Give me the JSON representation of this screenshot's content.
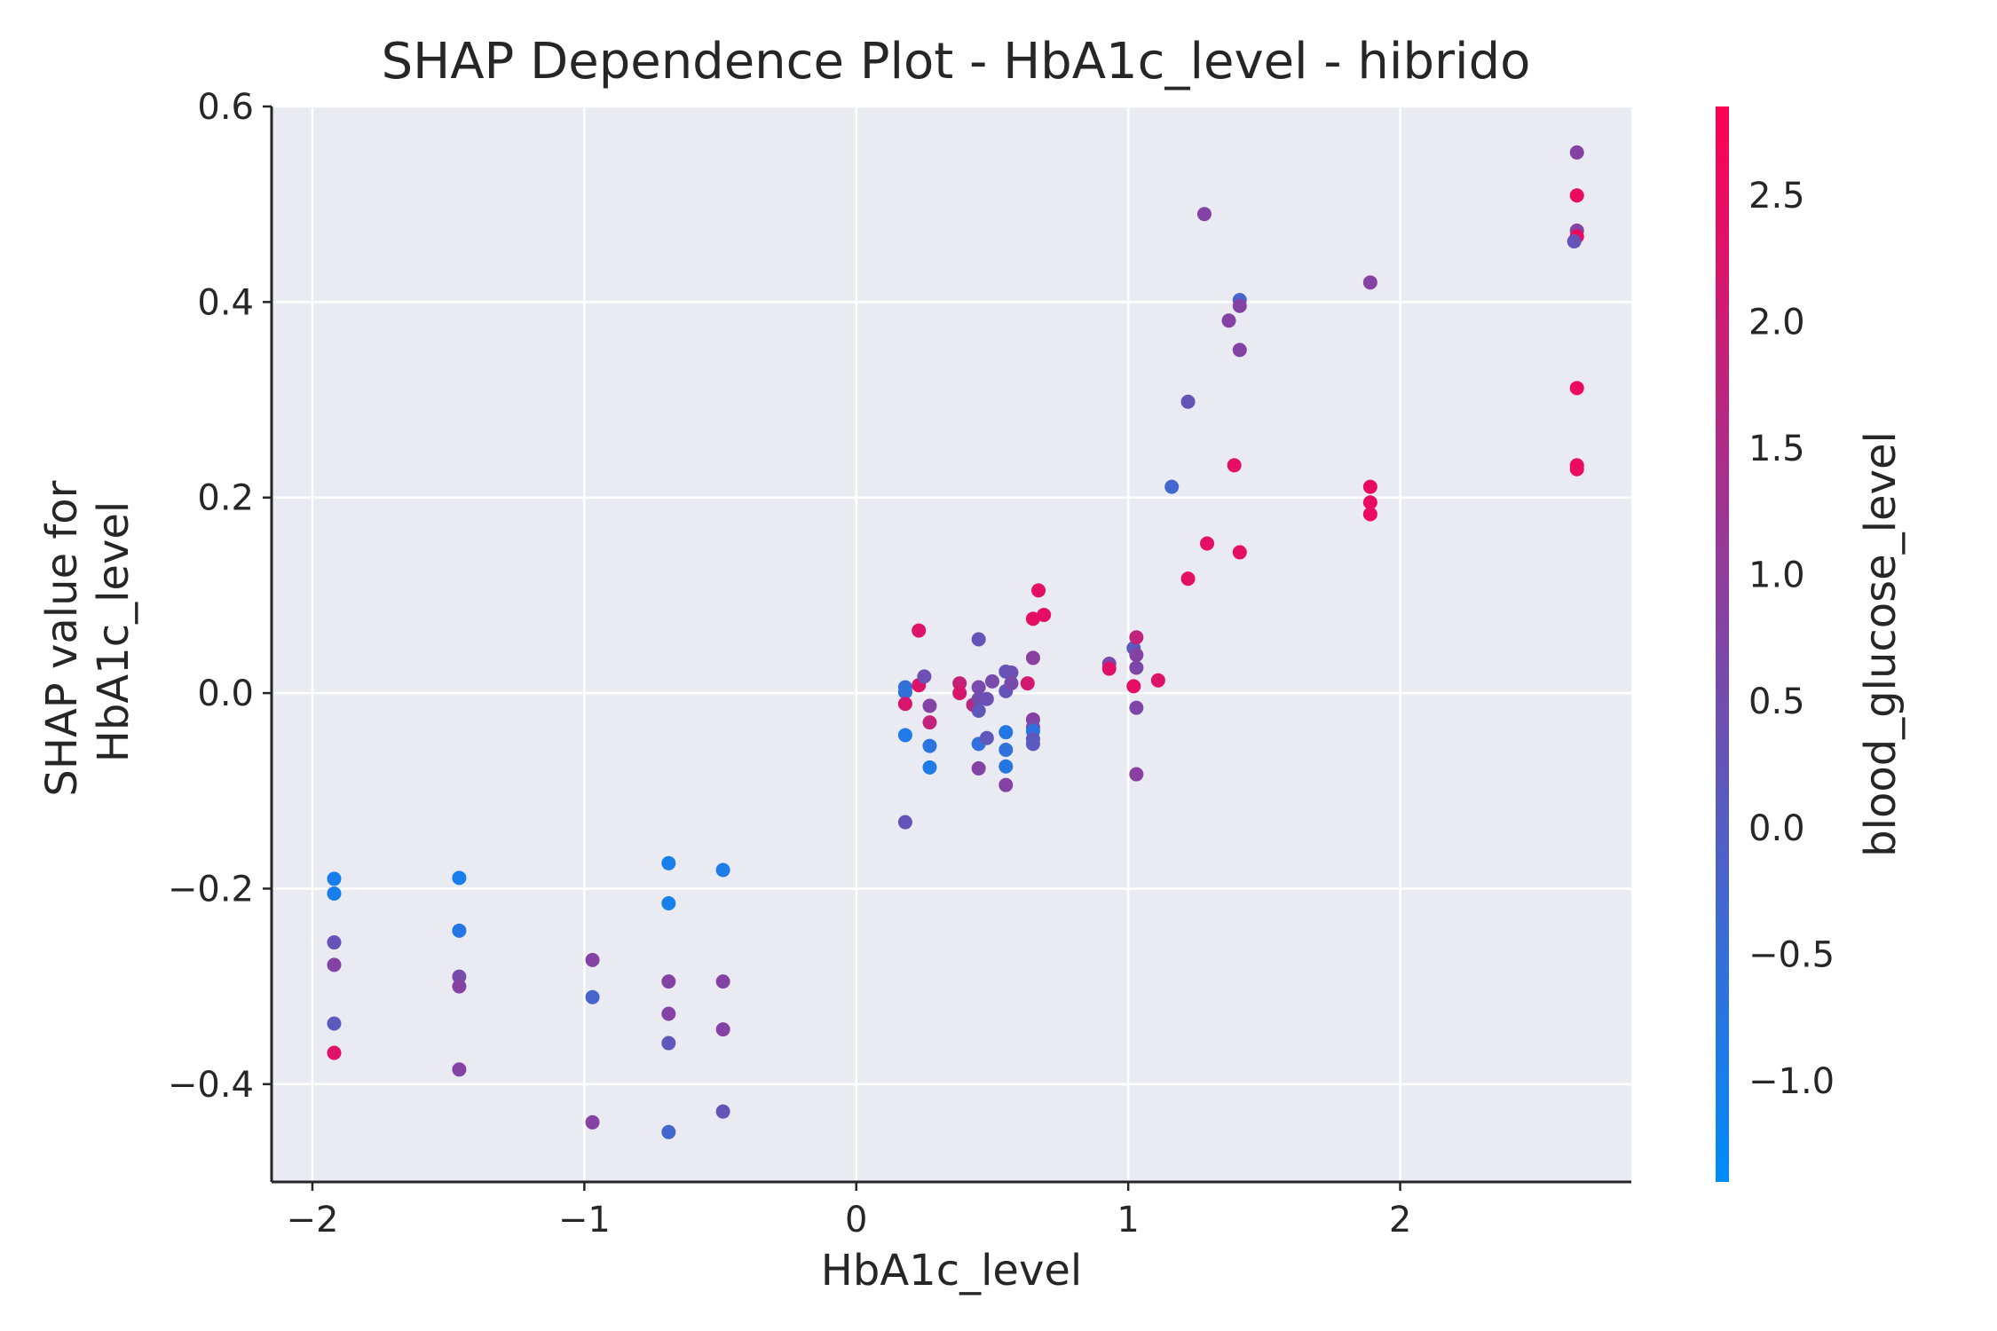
{
  "chart_data": {
    "type": "scatter",
    "title": "SHAP Dependence Plot - HbA1c_level - hibrido",
    "xlabel": "HbA1c_level",
    "ylabel": "SHAP value for\nHbA1c_level",
    "xlim": [
      -2.15,
      2.85
    ],
    "ylim": [
      -0.5,
      0.6
    ],
    "xticks": [
      {
        "value": -2,
        "label": "−2"
      },
      {
        "value": -1,
        "label": "−1"
      },
      {
        "value": 0,
        "label": "0"
      },
      {
        "value": 1,
        "label": "1"
      },
      {
        "value": 2,
        "label": "2"
      }
    ],
    "yticks": [
      {
        "value": -0.4,
        "label": "−0.4"
      },
      {
        "value": -0.2,
        "label": "−0.2"
      },
      {
        "value": 0.0,
        "label": "0.0"
      },
      {
        "value": 0.2,
        "label": "0.2"
      },
      {
        "value": 0.4,
        "label": "0.4"
      },
      {
        "value": 0.6,
        "label": "0.6"
      }
    ],
    "grid": true,
    "background": "#eaeaf2",
    "colorbar": {
      "label": "blood_glucose_level",
      "range": [
        -1.4,
        2.85
      ],
      "ticks": [
        {
          "value": -1.0,
          "label": "−1.0"
        },
        {
          "value": -0.5,
          "label": "−0.5"
        },
        {
          "value": 0.0,
          "label": "0.0"
        },
        {
          "value": 0.5,
          "label": "0.5"
        },
        {
          "value": 1.0,
          "label": "1.0"
        },
        {
          "value": 1.5,
          "label": "1.5"
        },
        {
          "value": 2.0,
          "label": "2.0"
        },
        {
          "value": 2.5,
          "label": "2.5"
        }
      ],
      "colors": [
        "#008bfb",
        "#ff0052"
      ]
    },
    "points": [
      {
        "x": -1.92,
        "y": -0.19,
        "c": -1.0
      },
      {
        "x": -1.92,
        "y": -0.205,
        "c": -1.0
      },
      {
        "x": -1.92,
        "y": -0.255,
        "c": 0.3
      },
      {
        "x": -1.92,
        "y": -0.278,
        "c": 0.8
      },
      {
        "x": -1.92,
        "y": -0.338,
        "c": 0.1
      },
      {
        "x": -1.92,
        "y": -0.368,
        "c": 2.3
      },
      {
        "x": -1.46,
        "y": -0.189,
        "c": -1.0
      },
      {
        "x": -1.46,
        "y": -0.243,
        "c": -0.8
      },
      {
        "x": -1.46,
        "y": -0.29,
        "c": 0.6
      },
      {
        "x": -1.46,
        "y": -0.3,
        "c": 0.8
      },
      {
        "x": -1.46,
        "y": -0.385,
        "c": 0.8
      },
      {
        "x": -0.97,
        "y": -0.273,
        "c": 0.8
      },
      {
        "x": -0.97,
        "y": -0.311,
        "c": -0.2
      },
      {
        "x": -0.97,
        "y": -0.439,
        "c": 0.8
      },
      {
        "x": -0.69,
        "y": -0.174,
        "c": -1.0
      },
      {
        "x": -0.69,
        "y": -0.215,
        "c": -1.0
      },
      {
        "x": -0.69,
        "y": -0.295,
        "c": 0.8
      },
      {
        "x": -0.69,
        "y": -0.328,
        "c": 0.8
      },
      {
        "x": -0.69,
        "y": -0.358,
        "c": 0.2
      },
      {
        "x": -0.69,
        "y": -0.449,
        "c": -0.3
      },
      {
        "x": -0.49,
        "y": -0.181,
        "c": -0.9
      },
      {
        "x": -0.49,
        "y": -0.295,
        "c": 0.8
      },
      {
        "x": -0.49,
        "y": -0.344,
        "c": 0.8
      },
      {
        "x": -0.49,
        "y": -0.428,
        "c": 0.3
      },
      {
        "x": 0.18,
        "y": 0.006,
        "c": -0.5
      },
      {
        "x": 0.18,
        "y": 0.001,
        "c": -0.6
      },
      {
        "x": 0.18,
        "y": -0.011,
        "c": 2.2
      },
      {
        "x": 0.18,
        "y": -0.043,
        "c": -0.9
      },
      {
        "x": 0.18,
        "y": -0.132,
        "c": 0.3
      },
      {
        "x": 0.23,
        "y": 0.064,
        "c": 2.3
      },
      {
        "x": 0.23,
        "y": 0.008,
        "c": 2.3
      },
      {
        "x": 0.25,
        "y": 0.017,
        "c": 0.4
      },
      {
        "x": 0.27,
        "y": -0.013,
        "c": 0.8
      },
      {
        "x": 0.27,
        "y": -0.03,
        "c": 1.8
      },
      {
        "x": 0.27,
        "y": -0.054,
        "c": -0.7
      },
      {
        "x": 0.27,
        "y": -0.076,
        "c": -0.9
      },
      {
        "x": 0.38,
        "y": 0.01,
        "c": 1.9
      },
      {
        "x": 0.38,
        "y": 0.0,
        "c": 2.2
      },
      {
        "x": 0.43,
        "y": -0.012,
        "c": 1.7
      },
      {
        "x": 0.45,
        "y": 0.055,
        "c": 0.3
      },
      {
        "x": 0.45,
        "y": 0.006,
        "c": 0.6
      },
      {
        "x": 0.45,
        "y": -0.006,
        "c": 0.5
      },
      {
        "x": 0.45,
        "y": -0.018,
        "c": 0.2
      },
      {
        "x": 0.45,
        "y": -0.052,
        "c": -0.6
      },
      {
        "x": 0.45,
        "y": -0.077,
        "c": 0.8
      },
      {
        "x": 0.48,
        "y": -0.006,
        "c": 0.4
      },
      {
        "x": 0.48,
        "y": -0.046,
        "c": 0.2
      },
      {
        "x": 0.5,
        "y": 0.012,
        "c": 0.6
      },
      {
        "x": 0.55,
        "y": 0.022,
        "c": 0.3
      },
      {
        "x": 0.55,
        "y": 0.002,
        "c": 0.3
      },
      {
        "x": 0.55,
        "y": -0.04,
        "c": -0.8
      },
      {
        "x": 0.55,
        "y": -0.058,
        "c": -0.6
      },
      {
        "x": 0.55,
        "y": -0.075,
        "c": -0.8
      },
      {
        "x": 0.55,
        "y": -0.094,
        "c": 0.8
      },
      {
        "x": 0.57,
        "y": 0.021,
        "c": 0.4
      },
      {
        "x": 0.57,
        "y": 0.01,
        "c": 0.6
      },
      {
        "x": 0.63,
        "y": 0.01,
        "c": 2.1
      },
      {
        "x": 0.65,
        "y": 0.076,
        "c": 2.4
      },
      {
        "x": 0.65,
        "y": 0.036,
        "c": 0.9
      },
      {
        "x": 0.65,
        "y": -0.027,
        "c": 0.8
      },
      {
        "x": 0.65,
        "y": -0.035,
        "c": 0.6
      },
      {
        "x": 0.65,
        "y": -0.039,
        "c": -0.7
      },
      {
        "x": 0.65,
        "y": -0.047,
        "c": 0.2
      },
      {
        "x": 0.65,
        "y": -0.052,
        "c": 0.1
      },
      {
        "x": 0.67,
        "y": 0.105,
        "c": 2.4
      },
      {
        "x": 0.69,
        "y": 0.08,
        "c": 2.4
      },
      {
        "x": 0.93,
        "y": 0.03,
        "c": 0.6
      },
      {
        "x": 0.93,
        "y": 0.025,
        "c": 2.3
      },
      {
        "x": 1.02,
        "y": 0.046,
        "c": 0.1
      },
      {
        "x": 1.02,
        "y": 0.007,
        "c": 2.4
      },
      {
        "x": 1.03,
        "y": 0.057,
        "c": 1.8
      },
      {
        "x": 1.03,
        "y": 0.039,
        "c": 0.8
      },
      {
        "x": 1.03,
        "y": 0.026,
        "c": 0.7
      },
      {
        "x": 1.03,
        "y": -0.015,
        "c": 0.7
      },
      {
        "x": 1.03,
        "y": -0.083,
        "c": 0.9
      },
      {
        "x": 1.11,
        "y": 0.013,
        "c": 2.3
      },
      {
        "x": 1.16,
        "y": 0.211,
        "c": -0.3
      },
      {
        "x": 1.22,
        "y": 0.298,
        "c": 0.3
      },
      {
        "x": 1.22,
        "y": 0.117,
        "c": 2.4
      },
      {
        "x": 1.28,
        "y": 0.49,
        "c": 0.8
      },
      {
        "x": 1.29,
        "y": 0.153,
        "c": 2.4
      },
      {
        "x": 1.37,
        "y": 0.381,
        "c": 0.8
      },
      {
        "x": 1.39,
        "y": 0.233,
        "c": 2.4
      },
      {
        "x": 1.41,
        "y": 0.402,
        "c": -0.2
      },
      {
        "x": 1.41,
        "y": 0.396,
        "c": 0.8
      },
      {
        "x": 1.41,
        "y": 0.351,
        "c": 0.8
      },
      {
        "x": 1.41,
        "y": 0.144,
        "c": 2.4
      },
      {
        "x": 1.89,
        "y": 0.42,
        "c": 0.8
      },
      {
        "x": 1.89,
        "y": 0.211,
        "c": 2.5
      },
      {
        "x": 1.89,
        "y": 0.195,
        "c": 2.5
      },
      {
        "x": 1.89,
        "y": 0.183,
        "c": 2.5
      },
      {
        "x": 2.65,
        "y": 0.553,
        "c": 0.8
      },
      {
        "x": 2.65,
        "y": 0.509,
        "c": 2.5
      },
      {
        "x": 2.65,
        "y": 0.473,
        "c": 0.8
      },
      {
        "x": 2.65,
        "y": 0.467,
        "c": 2.5
      },
      {
        "x": 2.64,
        "y": 0.462,
        "c": 0.3
      },
      {
        "x": 2.65,
        "y": 0.312,
        "c": 2.5
      },
      {
        "x": 2.65,
        "y": 0.233,
        "c": 2.5
      },
      {
        "x": 2.65,
        "y": 0.229,
        "c": 2.5
      }
    ]
  }
}
